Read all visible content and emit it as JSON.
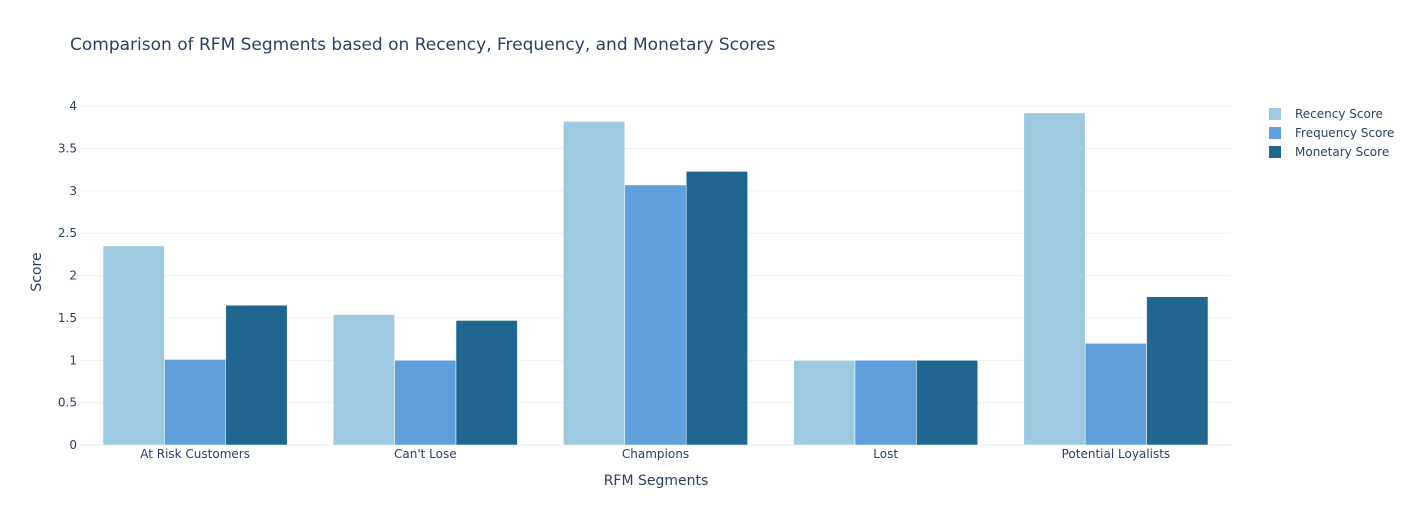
{
  "chart_data": {
    "type": "bar",
    "title": "Comparison of RFM Segments based on Recency, Frequency, and Monetary Scores",
    "xlabel": "RFM Segments",
    "ylabel": "Score",
    "ylim": [
      0,
      4.12
    ],
    "yticks": [
      0,
      0.5,
      1,
      1.5,
      2,
      2.5,
      3,
      3.5,
      4
    ],
    "ytick_labels": [
      "0",
      "0.5",
      "1",
      "1.5",
      "2",
      "2.5",
      "3",
      "3.5",
      "4"
    ],
    "grid": true,
    "legend_position": "top-right",
    "categories": [
      "At Risk Customers",
      "Can't Lose",
      "Champions",
      "Lost",
      "Potential Loyalists"
    ],
    "series": [
      {
        "name": "Recency Score",
        "color": "#9ecae1",
        "values": [
          2.35,
          1.54,
          3.82,
          1.0,
          3.92
        ]
      },
      {
        "name": "Frequency Score",
        "color": "#5f9fdb",
        "values": [
          1.01,
          1.0,
          3.07,
          1.0,
          1.2
        ]
      },
      {
        "name": "Monetary Score",
        "color": "#1f6691",
        "values": [
          1.65,
          1.47,
          3.23,
          1.0,
          1.75
        ]
      }
    ]
  }
}
